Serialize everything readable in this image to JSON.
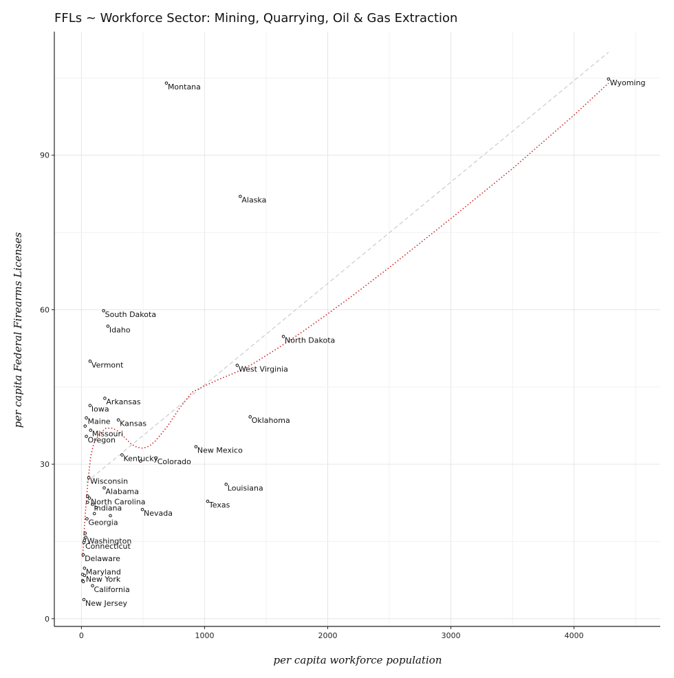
{
  "chart_data": {
    "type": "scatter",
    "title": "FFLs ~ Workforce Sector: Mining, Quarrying, Oil & Gas Extraction",
    "xlabel": "per capita workforce population",
    "ylabel": "per capita Federal Firearms Licenses",
    "xlim": [
      -220,
      4700
    ],
    "ylim": [
      -1.5,
      114
    ],
    "x_ticks": [
      0,
      1000,
      2000,
      3000,
      4000
    ],
    "y_ticks": [
      0,
      30,
      60,
      90
    ],
    "grid": true,
    "points": [
      {
        "x": 4280,
        "y": 104.8,
        "label": "Wyoming"
      },
      {
        "x": 690,
        "y": 104.0,
        "label": "Montana"
      },
      {
        "x": 1290,
        "y": 82.0,
        "label": "Alaska"
      },
      {
        "x": 180,
        "y": 59.8,
        "label": "South Dakota"
      },
      {
        "x": 215,
        "y": 56.8,
        "label": "Idaho"
      },
      {
        "x": 1640,
        "y": 54.8,
        "label": "North Dakota"
      },
      {
        "x": 70,
        "y": 50.0,
        "label": "Vermont"
      },
      {
        "x": 1265,
        "y": 49.2,
        "label": "West Virginia"
      },
      {
        "x": 190,
        "y": 42.8,
        "label": "Arkansas"
      },
      {
        "x": 70,
        "y": 41.4,
        "label": "Iowa"
      },
      {
        "x": 1370,
        "y": 39.2,
        "label": "Oklahoma"
      },
      {
        "x": 40,
        "y": 39.0,
        "label": "Maine"
      },
      {
        "x": 300,
        "y": 38.6,
        "label": "Kansas"
      },
      {
        "x": 30,
        "y": 37.4,
        "label": ""
      },
      {
        "x": 75,
        "y": 36.6,
        "label": "Missouri"
      },
      {
        "x": 40,
        "y": 35.4,
        "label": "Oregon"
      },
      {
        "x": 930,
        "y": 33.4,
        "label": "New Mexico"
      },
      {
        "x": 330,
        "y": 31.8,
        "label": "Kentucky"
      },
      {
        "x": 605,
        "y": 31.2,
        "label": "Colorado"
      },
      {
        "x": 480,
        "y": 30.6,
        "label": ""
      },
      {
        "x": 60,
        "y": 27.4,
        "label": "Wisconsin"
      },
      {
        "x": 1175,
        "y": 26.1,
        "label": "Louisiana"
      },
      {
        "x": 185,
        "y": 25.4,
        "label": "Alabama"
      },
      {
        "x": 50,
        "y": 23.8,
        "label": ""
      },
      {
        "x": 65,
        "y": 23.4,
        "label": "North Carolina"
      },
      {
        "x": 1025,
        "y": 22.8,
        "label": "Texas"
      },
      {
        "x": 50,
        "y": 22.6,
        "label": ""
      },
      {
        "x": 90,
        "y": 22.2,
        "label": "Indiana"
      },
      {
        "x": 120,
        "y": 21.6,
        "label": ""
      },
      {
        "x": 495,
        "y": 21.2,
        "label": "Nevada"
      },
      {
        "x": 105,
        "y": 20.4,
        "label": ""
      },
      {
        "x": 235,
        "y": 20.0,
        "label": ""
      },
      {
        "x": 45,
        "y": 19.4,
        "label": "Georgia"
      },
      {
        "x": 30,
        "y": 16.6,
        "label": ""
      },
      {
        "x": 35,
        "y": 15.8,
        "label": "Washington"
      },
      {
        "x": 25,
        "y": 15.2,
        "label": ""
      },
      {
        "x": 20,
        "y": 14.8,
        "label": "Connecticut"
      },
      {
        "x": 15,
        "y": 12.4,
        "label": "Delaware"
      },
      {
        "x": 25,
        "y": 9.8,
        "label": "Maryland"
      },
      {
        "x": 10,
        "y": 8.6,
        "label": ""
      },
      {
        "x": 25,
        "y": 8.4,
        "label": "New York"
      },
      {
        "x": 10,
        "y": 7.4,
        "label": ""
      },
      {
        "x": 15,
        "y": 7.2,
        "label": ""
      },
      {
        "x": 90,
        "y": 6.4,
        "label": "California"
      },
      {
        "x": 20,
        "y": 3.7,
        "label": "New Jersey"
      }
    ],
    "series": [
      {
        "style": "dashed",
        "color": "#c2ccd4",
        "x": [
          40,
          4280
        ],
        "y": [
          26.5,
          110.0
        ]
      },
      {
        "style": "dotted",
        "color": "#cc2222",
        "x": [
          10,
          20,
          30,
          50,
          75,
          100,
          150,
          200,
          250,
          300,
          350,
          400,
          450,
          500,
          550,
          600,
          700,
          800,
          900,
          1000,
          1100,
          1200,
          1300,
          1400,
          1600,
          1800,
          2000,
          2200,
          2500,
          3000,
          3500,
          4000,
          4280
        ],
        "y": [
          12.0,
          16.0,
          20.0,
          26.0,
          31.5,
          34.0,
          36.0,
          37.0,
          37.0,
          36.4,
          35.2,
          34.0,
          33.3,
          33.1,
          33.5,
          34.5,
          37.4,
          41.0,
          44.0,
          45.2,
          46.3,
          47.3,
          48.3,
          49.6,
          52.6,
          55.8,
          59.2,
          62.7,
          68.2,
          77.7,
          87.4,
          97.8,
          104.0
        ]
      }
    ]
  }
}
